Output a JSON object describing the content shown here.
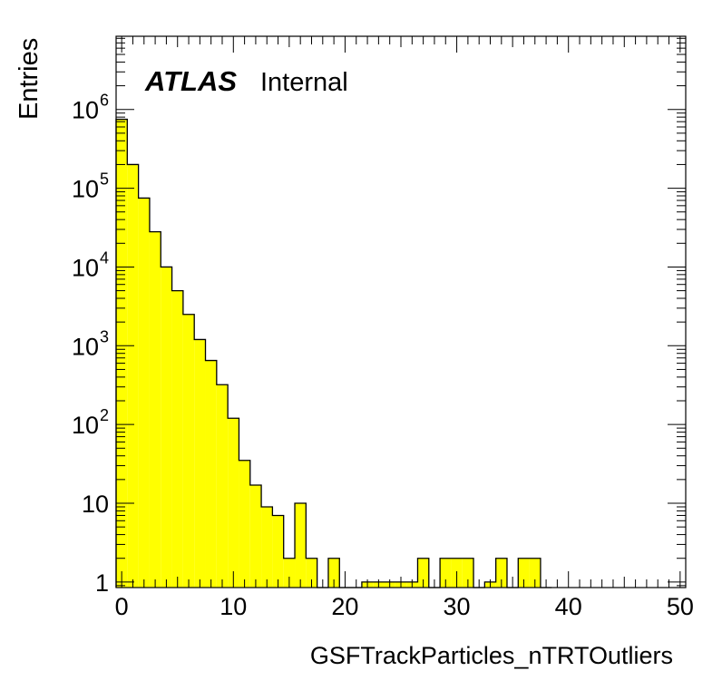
{
  "chart_data": {
    "type": "bar",
    "style": "histogram-step",
    "fill_color": "#ffff00",
    "line_color": "#000000",
    "x_axis": {
      "label": "GSFTrackParticles_nTRTOutliers",
      "range": [
        -0.5,
        50.5
      ],
      "tick_labels": [
        "0",
        "10",
        "20",
        "30",
        "40",
        "50"
      ],
      "tick_values": [
        0,
        10,
        20,
        30,
        40,
        50
      ]
    },
    "y_axis": {
      "label": "Entries",
      "scale": "log",
      "range": [
        0.85,
        8500000
      ],
      "tick_labels": [
        {
          "base": "1",
          "exp": ""
        },
        {
          "base": "10",
          "exp": ""
        },
        {
          "base": "10",
          "exp": "2"
        },
        {
          "base": "10",
          "exp": "3"
        },
        {
          "base": "10",
          "exp": "4"
        },
        {
          "base": "10",
          "exp": "5"
        },
        {
          "base": "10",
          "exp": "6"
        }
      ],
      "tick_values": [
        1,
        10,
        100,
        1000,
        10000,
        100000,
        1000000
      ]
    },
    "label_bold": "ATLAS",
    "label_normal": "Internal",
    "bins": [
      {
        "x": 0,
        "value": 750000
      },
      {
        "x": 1,
        "value": 200000
      },
      {
        "x": 2,
        "value": 75000
      },
      {
        "x": 3,
        "value": 28000
      },
      {
        "x": 4,
        "value": 10000
      },
      {
        "x": 5,
        "value": 5000
      },
      {
        "x": 6,
        "value": 2500
      },
      {
        "x": 7,
        "value": 1200
      },
      {
        "x": 8,
        "value": 650
      },
      {
        "x": 9,
        "value": 320
      },
      {
        "x": 10,
        "value": 120
      },
      {
        "x": 11,
        "value": 35
      },
      {
        "x": 12,
        "value": 17
      },
      {
        "x": 13,
        "value": 9
      },
      {
        "x": 14,
        "value": 7
      },
      {
        "x": 15,
        "value": 2
      },
      {
        "x": 16,
        "value": 10
      },
      {
        "x": 17,
        "value": 2
      },
      {
        "x": 18,
        "value": 0
      },
      {
        "x": 19,
        "value": 2
      },
      {
        "x": 20,
        "value": 0
      },
      {
        "x": 21,
        "value": 0
      },
      {
        "x": 22,
        "value": 1
      },
      {
        "x": 23,
        "value": 1
      },
      {
        "x": 24,
        "value": 1
      },
      {
        "x": 25,
        "value": 1
      },
      {
        "x": 26,
        "value": 1
      },
      {
        "x": 27,
        "value": 2
      },
      {
        "x": 28,
        "value": 0
      },
      {
        "x": 29,
        "value": 2
      },
      {
        "x": 30,
        "value": 2
      },
      {
        "x": 31,
        "value": 2
      },
      {
        "x": 32,
        "value": 0
      },
      {
        "x": 33,
        "value": 1
      },
      {
        "x": 34,
        "value": 2
      },
      {
        "x": 35,
        "value": 0
      },
      {
        "x": 36,
        "value": 2
      },
      {
        "x": 37,
        "value": 2
      },
      {
        "x": 38,
        "value": 0
      }
    ]
  }
}
